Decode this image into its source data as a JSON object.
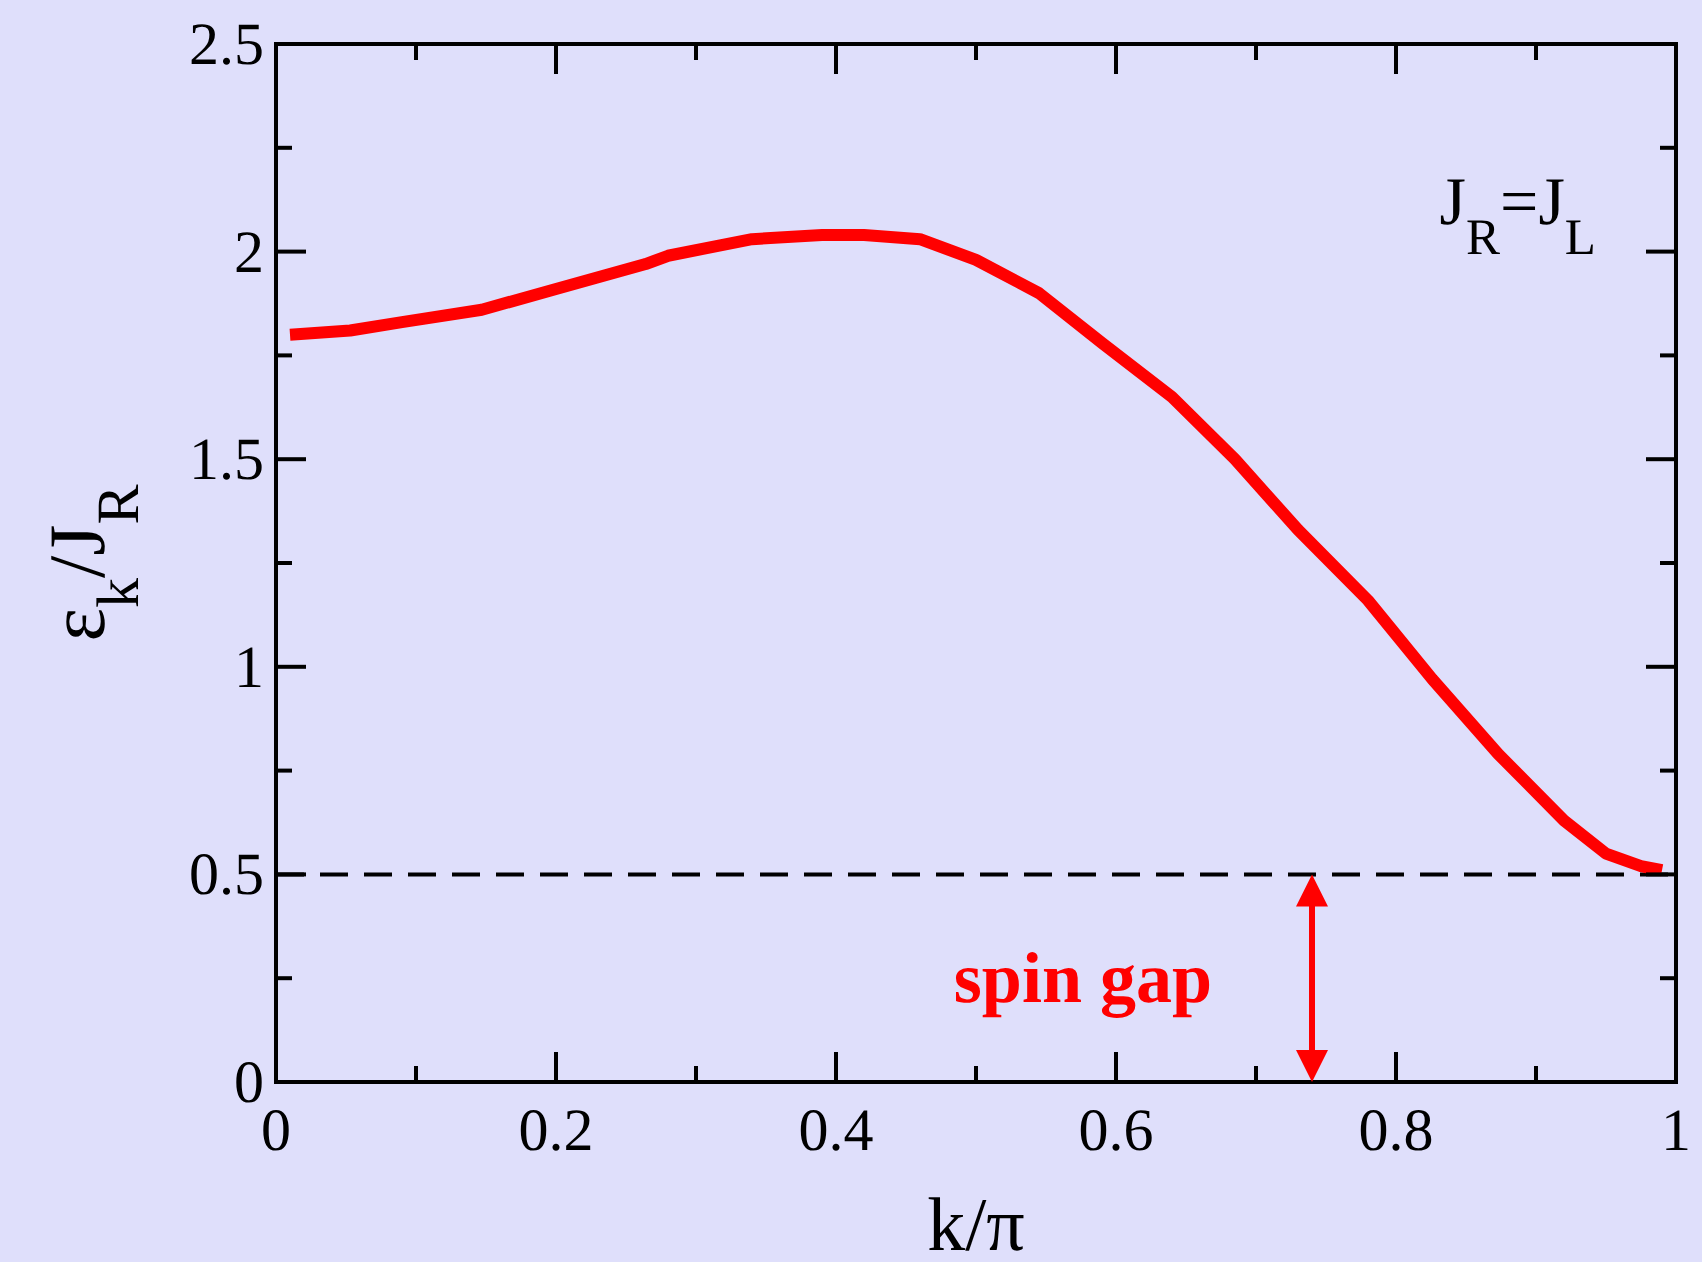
{
  "chart_data": {
    "type": "line",
    "xlabel": "k/π",
    "ylabel": "ε$_{k}$/J$_{R}$",
    "x": [
      0.01,
      0.053,
      0.09,
      0.147,
      0.2,
      0.264,
      0.28,
      0.34,
      0.39,
      0.42,
      0.46,
      0.5,
      0.545,
      0.59,
      0.64,
      0.685,
      0.73,
      0.78,
      0.826,
      0.873,
      0.92,
      0.95,
      0.975,
      0.99
    ],
    "series": [
      {
        "color": "#ff0000",
        "values": [
          1.8,
          1.81,
          1.83,
          1.86,
          1.91,
          1.97,
          1.99,
          2.03,
          2.04,
          2.04,
          2.03,
          1.98,
          1.9,
          1.78,
          1.65,
          1.5,
          1.33,
          1.16,
          0.97,
          0.79,
          0.63,
          0.55,
          0.52,
          0.51
        ]
      }
    ],
    "xlim": [
      0,
      1
    ],
    "ylim": [
      0,
      2.5
    ],
    "xticks": [
      0,
      {
        "value": 0.1,
        "label": null
      },
      0.2,
      {
        "value": 0.3,
        "label": null
      },
      0.4,
      {
        "value": 0.5,
        "label": null
      },
      0.6,
      {
        "value": 0.7,
        "label": null
      },
      0.8,
      {
        "value": 0.9,
        "label": null
      },
      1
    ],
    "yticks": [
      0,
      {
        "value": 0.25,
        "label": null
      },
      0.5,
      {
        "value": 0.75,
        "label": null
      },
      1,
      {
        "value": 1.25,
        "label": null
      },
      1.5,
      {
        "value": 1.75,
        "label": null
      },
      2,
      {
        "value": 2.25,
        "label": null
      },
      2.5
    ],
    "ref_lines": [
      {
        "axis": "y",
        "value": 0.5,
        "color": "#000000",
        "line_style": "dashed"
      }
    ],
    "annotations": [
      "J$_{R}$=J$_{L}$",
      {
        "text": "spin gap",
        "x": 0.74,
        "y": 0.5
      }
    ],
    "grid": false,
    "marker": "none",
    "line_style": "solid"
  }
}
